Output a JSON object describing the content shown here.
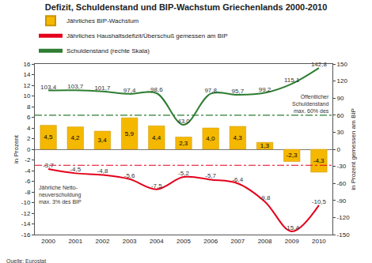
{
  "chart_data": {
    "type": "bar",
    "title": "Defizit, Schuldenstand und BIP-Wachstum Griechenlands 2000-2010",
    "categories": [
      "2000",
      "2001",
      "2002",
      "2003",
      "2004",
      "2005",
      "2006",
      "2007",
      "2008",
      "2009",
      "2010"
    ],
    "series": [
      {
        "name": "Jährliches BIP-Wachstum",
        "type": "bar",
        "color": "#f5b800",
        "values": [
          4.5,
          4.2,
          3.4,
          5.9,
          4.4,
          2.3,
          4.0,
          4.3,
          1.3,
          -2.3,
          -4.3
        ],
        "value_labels": [
          "4,5",
          "4,2",
          "3,4",
          "5,9",
          "4,4",
          "2,3",
          "4,0",
          "4,3",
          "1,3",
          "-2,3",
          "-4,3"
        ]
      },
      {
        "name": "Jährliches Haushaltsdefizit/Überschuß gemessen am BIP",
        "type": "line",
        "color": "#e3001b",
        "line_style": "solid",
        "values": [
          -3.7,
          -4.5,
          -4.8,
          -5.6,
          -7.5,
          -5.2,
          -5.7,
          -6.4,
          -9.8,
          -15.4,
          -10.5
        ],
        "value_labels": [
          "-3,7",
          "-4,5",
          "-4,8",
          "-5,6",
          "-7,5",
          "-5,2",
          "-5,7",
          "-6,4",
          "-9,8",
          "-15,4",
          "-10,5"
        ]
      },
      {
        "name": "Schuldenstand (rechte Skala)",
        "type": "line",
        "axis": "y2",
        "color": "#2e7d32",
        "line_style": "solid",
        "values": [
          103.4,
          103.7,
          101.7,
          97.4,
          98.6,
          43.0,
          97.8,
          95.7,
          99.2,
          115.1,
          142.8
        ],
        "value_labels": [
          "103,4",
          "103,7",
          "101,7",
          "97,4",
          "98,6",
          "43,0",
          "97,8",
          "95,7",
          "99,2",
          "115,1",
          "142,8"
        ]
      }
    ],
    "y_label": "in Prozent",
    "y2_label": "in Prozent gemessen am BIP",
    "ylim": [
      -16,
      16
    ],
    "yticks": [
      -16,
      -14,
      -12,
      -10,
      -8,
      -6,
      -4,
      -2,
      0,
      2,
      4,
      6,
      8,
      10,
      12,
      14,
      16
    ],
    "y2lim": [
      -150,
      150
    ],
    "y2ticks": [
      -150,
      -120,
      -90,
      -60,
      -30,
      0,
      30,
      60,
      90,
      120,
      150
    ],
    "reference_lines": [
      {
        "axis": "y2",
        "value": 60,
        "color": "#2e7d32",
        "label": "Öffentlicher\nSchuldenstand\nmax. 60% des"
      },
      {
        "axis": "y",
        "value": -3,
        "color": "#e3001b",
        "label": "Jährliche Netto-\nneuverschuldung\nmax. 3% des BIP"
      }
    ],
    "source": "Quelle: Eurostat",
    "data_labels": true,
    "grid": false,
    "legend": "top left"
  }
}
